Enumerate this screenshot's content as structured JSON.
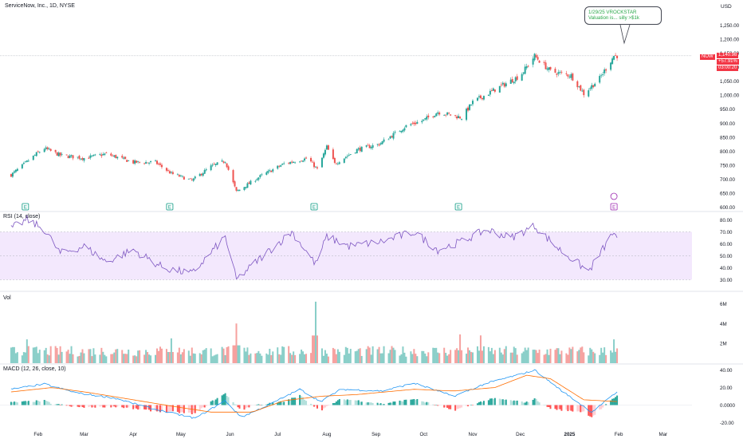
{
  "header": {
    "title": "ServiceNow, Inc., 1D, NYSE",
    "currency": "USD"
  },
  "annotation": {
    "line1": "1/29/25 VROCKSTAR",
    "line2": "Valuation is... silly >$1k"
  },
  "price_tags": {
    "symbol": "NOW",
    "last": "1,140.98",
    "change": "+57.91%",
    "countdown": "03:00:20"
  },
  "panels": {
    "rsi": "RSI (14, close)",
    "vol": "Vol",
    "macd": "MACD (12, 26, close, 10)"
  },
  "earnings_marker": "E",
  "colors": {
    "up": "#26a69a",
    "down": "#ef5350",
    "rsi_line": "#7e57c2",
    "rsi_band": "#f3e8fd",
    "macd_line": "#2196f3",
    "signal_line": "#ff6d00",
    "last_price": "#f23645",
    "annotation_text": "#2ba84a"
  },
  "chart_data": [
    {
      "type": "candlestick",
      "title": "ServiceNow, Inc., 1D, NYSE",
      "ylim": [
        590,
        1300
      ],
      "y_ticks": [
        "1,250.00",
        "1,200.00",
        "1,150.00",
        "1,100.00",
        "1,050.00",
        "1,000.00",
        "950.00",
        "900.00",
        "850.00",
        "800.00",
        "750.00",
        "700.00",
        "650.00",
        "600.00"
      ],
      "x_ticks": [
        "Feb",
        "Mar",
        "Apr",
        "May",
        "Jun",
        "Jul",
        "Aug",
        "Sep",
        "Oct",
        "Nov",
        "Dec",
        "2025",
        "Feb",
        "Mar"
      ],
      "close_anchors": [
        [
          "2024-01-15",
          715
        ],
        [
          "2024-01-31",
          790
        ],
        [
          "2024-02-05",
          810
        ],
        [
          "2024-02-15",
          785
        ],
        [
          "2024-03-01",
          775
        ],
        [
          "2024-03-15",
          790
        ],
        [
          "2024-04-01",
          760
        ],
        [
          "2024-04-15",
          760
        ],
        [
          "2024-04-25",
          720
        ],
        [
          "2024-05-08",
          695
        ],
        [
          "2024-05-20",
          745
        ],
        [
          "2024-05-29",
          765
        ],
        [
          "2024-06-05",
          655
        ],
        [
          "2024-06-20",
          710
        ],
        [
          "2024-07-05",
          755
        ],
        [
          "2024-07-20",
          775
        ],
        [
          "2024-07-26",
          735
        ],
        [
          "2024-08-01",
          815
        ],
        [
          "2024-08-06",
          755
        ],
        [
          "2024-08-20",
          805
        ],
        [
          "2024-09-03",
          825
        ],
        [
          "2024-09-20",
          890
        ],
        [
          "2024-10-01",
          910
        ],
        [
          "2024-10-10",
          940
        ],
        [
          "2024-10-25",
          920
        ],
        [
          "2024-11-01",
          975
        ],
        [
          "2024-11-15",
          1020
        ],
        [
          "2024-12-01",
          1070
        ],
        [
          "2024-12-10",
          1140
        ],
        [
          "2024-12-20",
          1085
        ],
        [
          "2025-01-02",
          1070
        ],
        [
          "2025-01-10",
          1005
        ],
        [
          "2025-01-20",
          1060
        ],
        [
          "2025-01-29",
          1140.98
        ]
      ],
      "last_price": 1140.98,
      "earnings_dates": [
        "2024-01-24",
        "2024-04-24",
        "2024-07-24",
        "2024-10-23",
        "2025-01-29"
      ]
    },
    {
      "type": "line",
      "name": "RSI (14, close)",
      "ylim": [
        25,
        85
      ],
      "y_ticks": [
        "80.00",
        "70.00",
        "60.00",
        "50.00",
        "40.00",
        "30.00"
      ],
      "band": [
        30,
        70
      ],
      "anchors": [
        [
          "2024-01-15",
          73
        ],
        [
          "2024-01-25",
          80
        ],
        [
          "2024-02-05",
          72
        ],
        [
          "2024-02-15",
          52
        ],
        [
          "2024-03-01",
          58
        ],
        [
          "2024-03-15",
          45
        ],
        [
          "2024-04-01",
          55
        ],
        [
          "2024-04-20",
          40
        ],
        [
          "2024-05-08",
          35
        ],
        [
          "2024-05-29",
          66
        ],
        [
          "2024-06-05",
          30
        ],
        [
          "2024-06-20",
          48
        ],
        [
          "2024-07-10",
          70
        ],
        [
          "2024-07-25",
          43
        ],
        [
          "2024-08-01",
          66
        ],
        [
          "2024-08-15",
          58
        ],
        [
          "2024-09-05",
          62
        ],
        [
          "2024-09-25",
          70
        ],
        [
          "2024-10-10",
          55
        ],
        [
          "2024-10-25",
          62
        ],
        [
          "2024-11-10",
          72
        ],
        [
          "2024-11-25",
          65
        ],
        [
          "2024-12-10",
          75
        ],
        [
          "2024-12-25",
          56
        ],
        [
          "2025-01-13",
          37
        ],
        [
          "2025-01-29",
          70
        ],
        [
          "2025-01-31",
          62
        ]
      ]
    },
    {
      "type": "bar",
      "name": "Vol",
      "y_ticks": [
        "6M",
        "4M",
        "2M"
      ],
      "ylim": [
        0,
        7000000
      ],
      "typical_volume": 1200000,
      "spikes": [
        [
          "2024-01-25",
          2400000
        ],
        [
          "2024-04-25",
          2500000
        ],
        [
          "2024-06-05",
          4000000
        ],
        [
          "2024-07-25",
          6200000
        ],
        [
          "2024-10-24",
          2900000
        ],
        [
          "2024-11-06",
          2800000
        ],
        [
          "2025-01-29",
          2400000
        ]
      ]
    },
    {
      "type": "line",
      "name": "MACD (12, 26, close, 10)",
      "ylim": [
        -25,
        45
      ],
      "y_ticks": [
        "40.00",
        "20.00",
        "0.0000",
        "-20.00"
      ],
      "macd_anchors": [
        [
          "2024-01-15",
          18
        ],
        [
          "2024-02-05",
          24
        ],
        [
          "2024-02-25",
          14
        ],
        [
          "2024-03-20",
          8
        ],
        [
          "2024-04-15",
          -5
        ],
        [
          "2024-05-10",
          -15
        ],
        [
          "2024-05-29",
          5
        ],
        [
          "2024-06-08",
          -14
        ],
        [
          "2024-06-25",
          0
        ],
        [
          "2024-07-15",
          18
        ],
        [
          "2024-07-28",
          4
        ],
        [
          "2024-08-10",
          18
        ],
        [
          "2024-09-05",
          16
        ],
        [
          "2024-09-25",
          25
        ],
        [
          "2024-10-20",
          10
        ],
        [
          "2024-11-10",
          25
        ],
        [
          "2024-12-01",
          35
        ],
        [
          "2024-12-10",
          40
        ],
        [
          "2024-12-28",
          15
        ],
        [
          "2025-01-15",
          -8
        ],
        [
          "2025-01-31",
          15
        ]
      ],
      "signal_anchors": [
        [
          "2024-01-15",
          15
        ],
        [
          "2024-02-10",
          20
        ],
        [
          "2024-03-05",
          14
        ],
        [
          "2024-04-01",
          6
        ],
        [
          "2024-04-28",
          -2
        ],
        [
          "2024-05-20",
          -8
        ],
        [
          "2024-06-15",
          -8
        ],
        [
          "2024-07-05",
          5
        ],
        [
          "2024-07-28",
          10
        ],
        [
          "2024-08-20",
          12
        ],
        [
          "2024-09-25",
          18
        ],
        [
          "2024-10-20",
          16
        ],
        [
          "2024-11-15",
          20
        ],
        [
          "2024-12-05",
          34
        ],
        [
          "2024-12-20",
          30
        ],
        [
          "2025-01-10",
          6
        ],
        [
          "2025-01-31",
          4
        ]
      ]
    }
  ]
}
